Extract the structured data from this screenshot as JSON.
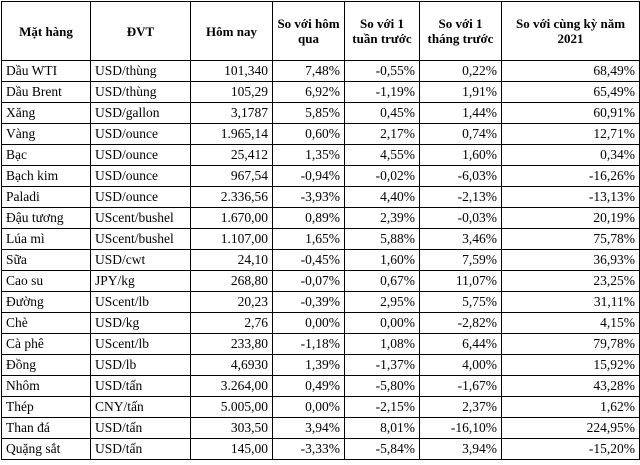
{
  "headers": [
    "Mặt hàng",
    "ĐVT",
    "Hôm nay",
    "So với hôm qua",
    "So với 1 tuần trước",
    "So với 1 tháng trước",
    "So với cùng kỳ năm 2021"
  ],
  "rows": [
    [
      "Dầu WTI",
      "USD/thùng",
      "101,340",
      "7,48%",
      "-0,55%",
      "0,22%",
      "68,49%"
    ],
    [
      "Dầu Brent",
      "USD/thùng",
      "105,29",
      "6,92%",
      "-1,19%",
      "1,91%",
      "65,49%"
    ],
    [
      "Xăng",
      "USD/gallon",
      "3,1787",
      "5,85%",
      "0,45%",
      "1,44%",
      "60,91%"
    ],
    [
      "Vàng",
      "USD/ounce",
      "1.965,14",
      "0,60%",
      "2,17%",
      "0,74%",
      "12,71%"
    ],
    [
      "Bạc",
      "USD/ounce",
      "25,412",
      "1,35%",
      "4,55%",
      "1,60%",
      "0,34%"
    ],
    [
      "Bạch kim",
      "USD/ounce",
      "967,54",
      "-0,94%",
      "-0,02%",
      "-6,03%",
      "-16,26%"
    ],
    [
      "Paladi",
      "USD/ounce",
      "2.336,56",
      "-3,93%",
      "4,40%",
      "-2,13%",
      "-13,13%"
    ],
    [
      "Đậu tương",
      "UScent/bushel",
      "1.670,00",
      "0,89%",
      "2,39%",
      "-0,03%",
      "20,19%"
    ],
    [
      "Lúa mì",
      "UScent/bushel",
      "1.107,00",
      "1,65%",
      "5,88%",
      "3,46%",
      "75,78%"
    ],
    [
      "Sữa",
      "USD/cwt",
      "24,10",
      "-0,45%",
      "1,60%",
      "7,59%",
      "36,93%"
    ],
    [
      "Cao su",
      "JPY/kg",
      "268,80",
      "-0,07%",
      "0,67%",
      "11,07%",
      "23,25%"
    ],
    [
      "Đường",
      "UScent/lb",
      "20,23",
      "-0,39%",
      "2,95%",
      "5,75%",
      "31,11%"
    ],
    [
      "Chè",
      "USD/kg",
      "2,76",
      "0,00%",
      "0,00%",
      "-2,82%",
      "4,15%"
    ],
    [
      "Cà phê",
      "UScent/lb",
      "233,80",
      "-1,18%",
      "1,08%",
      "6,44%",
      "79,78%"
    ],
    [
      "Đồng",
      "USD/lb",
      "4,6930",
      "1,39%",
      "-1,37%",
      "4,00%",
      "15,92%"
    ],
    [
      "Nhôm",
      "USD/tấn",
      "3.264,00",
      "0,49%",
      "-5,80%",
      "-1,67%",
      "43,28%"
    ],
    [
      "Thép",
      "CNY/tấn",
      "5.005,00",
      "0,00%",
      "-2,15%",
      "2,37%",
      "1,62%"
    ],
    [
      "Than đá",
      "USD/tấn",
      "303,50",
      "3,94%",
      "8,01%",
      "-16,10%",
      "224,95%"
    ],
    [
      "Quặng sắt",
      "USD/tấn",
      "145,00",
      "-3,33%",
      "-5,84%",
      "3,94%",
      "-15,20%"
    ]
  ]
}
